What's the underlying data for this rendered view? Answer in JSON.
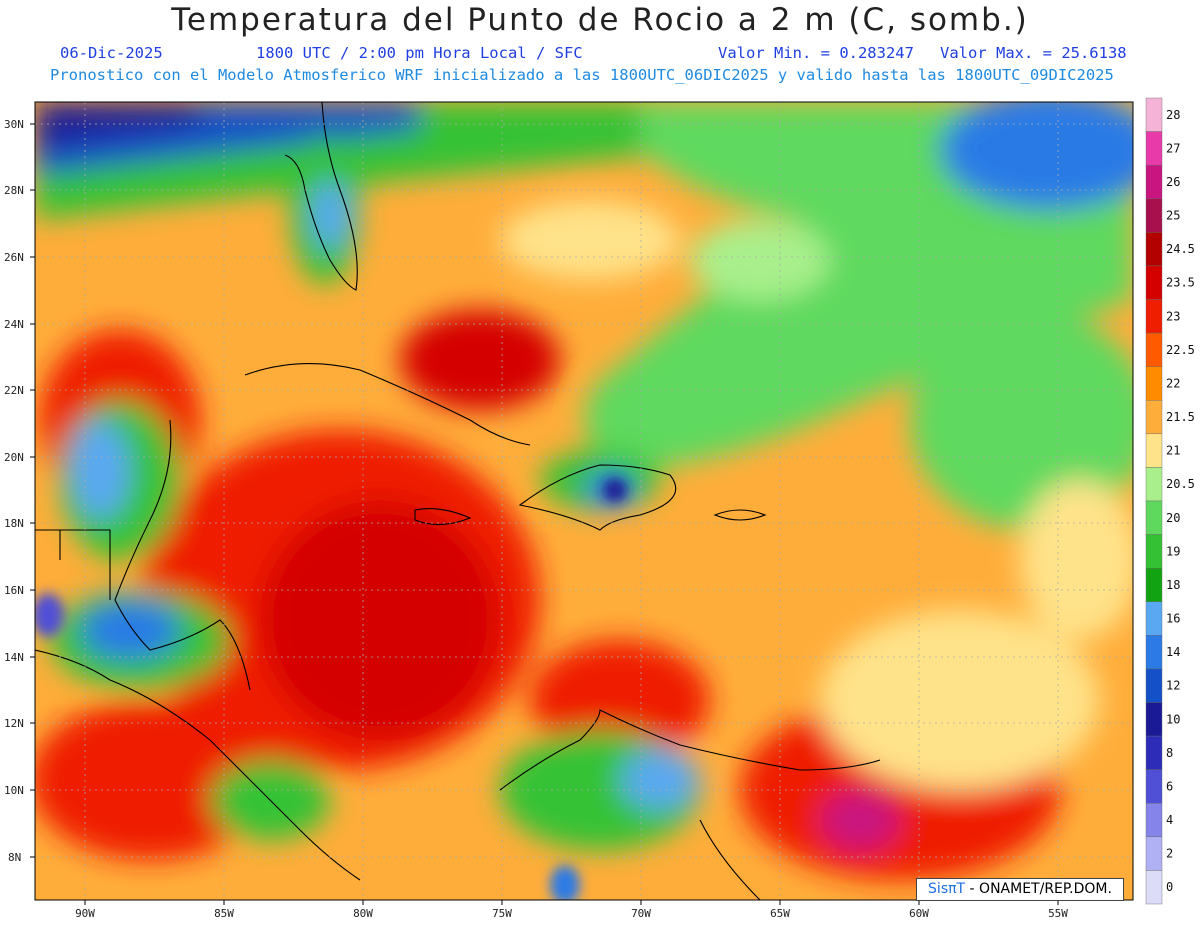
{
  "header": {
    "title": "Temperatura del Punto de Rocio a 2 m (C, somb.)",
    "date": "06-Dic-2025",
    "time_info": "1800 UTC / 2:00 pm Hora Local / SFC",
    "min_label": "Valor Min. = 0.283247",
    "max_label": "Valor Max. = 25.6138",
    "model_info": "Pronostico con el Modelo Atmosferico WRF inicializado a las 1800UTC_06DIC2025 y valido hasta las  1800UTC_09DIC2025"
  },
  "axes": {
    "lat_labels": [
      "30N",
      "28N",
      "26N",
      "24N",
      "22N",
      "20N",
      "18N",
      "16N",
      "14N",
      "12N",
      "10N",
      "8N"
    ],
    "lon_labels": [
      "90W",
      "85W",
      "80W",
      "75W",
      "70W",
      "65W",
      "60W",
      "55W"
    ]
  },
  "colorbar": {
    "labels": [
      "28",
      "27",
      "26",
      "25",
      "24.5",
      "23.5",
      "23",
      "22.5",
      "22",
      "21.5",
      "21",
      "20.5",
      "20",
      "19",
      "18",
      "16",
      "14",
      "12",
      "10",
      "8",
      "6",
      "4",
      "2",
      "0"
    ],
    "colors": [
      "#f5b3d7",
      "#e83aa8",
      "#c8157f",
      "#a8104d",
      "#b30000",
      "#d40000",
      "#ef1e00",
      "#ff5a00",
      "#ff8c00",
      "#ffad3a",
      "#ffe38a",
      "#a9f08c",
      "#5ed95e",
      "#34c234",
      "#12a312",
      "#5aa8f2",
      "#2b7ae6",
      "#1451c8",
      "#1a1a96",
      "#2c2cb8",
      "#5050d6",
      "#8484ea",
      "#b0b0f4",
      "#dcdcf8"
    ]
  },
  "credit": {
    "logo": "SisπT",
    "text": " - ONAMET/REP.DOM."
  }
}
